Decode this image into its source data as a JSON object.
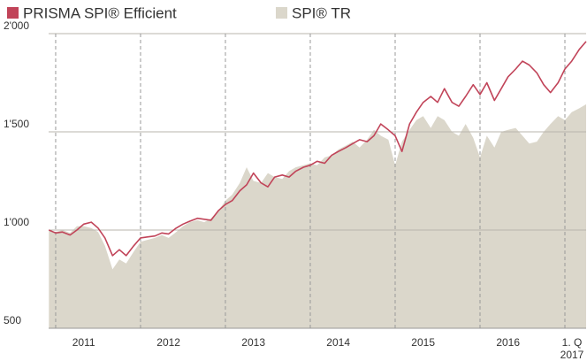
{
  "chart_data": {
    "type": "line-area",
    "x": [
      2010.92,
      2011,
      2011.08,
      2011.17,
      2011.25,
      2011.33,
      2011.42,
      2011.5,
      2011.58,
      2011.67,
      2011.75,
      2011.83,
      2011.92,
      2012,
      2012.08,
      2012.17,
      2012.25,
      2012.33,
      2012.42,
      2012.5,
      2012.58,
      2012.67,
      2012.75,
      2012.83,
      2012.92,
      2013,
      2013.08,
      2013.17,
      2013.25,
      2013.33,
      2013.42,
      2013.5,
      2013.58,
      2013.67,
      2013.75,
      2013.83,
      2013.92,
      2014,
      2014.08,
      2014.17,
      2014.25,
      2014.33,
      2014.42,
      2014.5,
      2014.58,
      2014.67,
      2014.75,
      2014.83,
      2014.92,
      2015,
      2015.08,
      2015.17,
      2015.25,
      2015.33,
      2015.42,
      2015.5,
      2015.58,
      2015.67,
      2015.75,
      2015.83,
      2015.92,
      2016,
      2016.08,
      2016.17,
      2016.25,
      2016.33,
      2016.42,
      2016.5,
      2016.58,
      2016.67,
      2016.75,
      2016.83,
      2016.92,
      2017,
      2017.08,
      2017.17,
      2017.25
    ],
    "series": [
      {
        "name": "PRISMA SPI® Efficient",
        "color": "#c14459",
        "kind": "line",
        "values": [
          1000,
          985,
          990,
          975,
          1000,
          1030,
          1040,
          1010,
          960,
          870,
          900,
          870,
          920,
          960,
          965,
          970,
          985,
          980,
          1010,
          1030,
          1045,
          1060,
          1055,
          1050,
          1100,
          1130,
          1150,
          1200,
          1230,
          1290,
          1240,
          1220,
          1270,
          1280,
          1270,
          1300,
          1320,
          1330,
          1350,
          1340,
          1380,
          1400,
          1420,
          1440,
          1460,
          1450,
          1480,
          1540,
          1510,
          1480,
          1400,
          1540,
          1600,
          1650,
          1680,
          1650,
          1720,
          1650,
          1630,
          1680,
          1740,
          1690,
          1750,
          1660,
          1720,
          1780,
          1820,
          1860,
          1840,
          1800,
          1740,
          1700,
          1750,
          1820,
          1860,
          1920,
          1960
        ]
      },
      {
        "name": "SPI® TR",
        "color": "#dbd7cb",
        "kind": "area",
        "values": [
          1000,
          990,
          1000,
          985,
          1020,
          1020,
          1010,
          990,
          920,
          800,
          850,
          830,
          890,
          940,
          950,
          960,
          975,
          960,
          990,
          1020,
          1040,
          1050,
          1040,
          1060,
          1100,
          1150,
          1180,
          1240,
          1320,
          1250,
          1240,
          1290,
          1270,
          1260,
          1300,
          1320,
          1330,
          1340,
          1330,
          1370,
          1380,
          1410,
          1430,
          1450,
          1420,
          1460,
          1510,
          1480,
          1460,
          1330,
          1450,
          1510,
          1560,
          1580,
          1520,
          1580,
          1560,
          1500,
          1480,
          1540,
          1470,
          1370,
          1480,
          1420,
          1500,
          1510,
          1520,
          1480,
          1440,
          1450,
          1500,
          1540,
          1580,
          1560,
          1600,
          1620,
          1640
        ]
      }
    ],
    "xlim": [
      2010.917,
      2017.25
    ],
    "xgrid": [
      2011,
      2012,
      2013,
      2014,
      2015,
      2016,
      2017
    ],
    "xticks": [
      {
        "value": 2011.33,
        "label": "2011"
      },
      {
        "value": 2012.33,
        "label": "2012"
      },
      {
        "value": 2013.33,
        "label": "2013"
      },
      {
        "value": 2014.33,
        "label": "2014"
      },
      {
        "value": 2015.33,
        "label": "2015"
      },
      {
        "value": 2016.33,
        "label": "2016"
      },
      {
        "value": 2017.11,
        "label": "1. Q 2017"
      }
    ],
    "ylim": [
      500,
      2000
    ],
    "yticks": [
      {
        "value": 500,
        "label": "500"
      },
      {
        "value": 1000,
        "label": "1'000"
      },
      {
        "value": 1500,
        "label": "1'500"
      },
      {
        "value": 2000,
        "label": "2'000"
      }
    ],
    "grid": true
  }
}
